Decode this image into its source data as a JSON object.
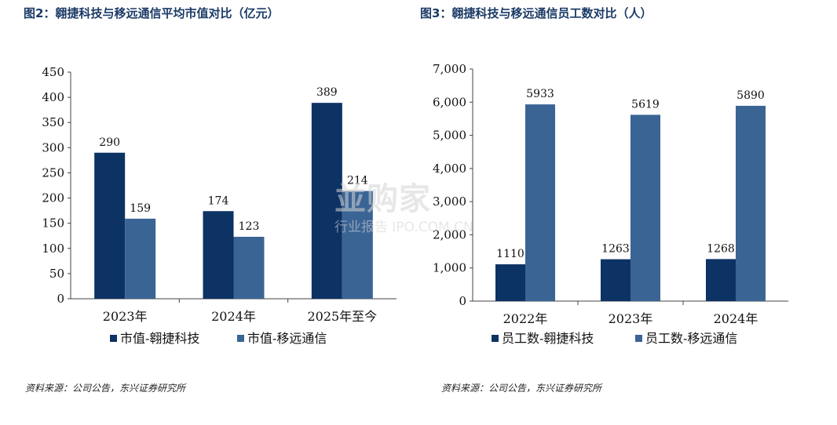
{
  "titles": {
    "left": "图2：翱捷科技与移远通信平均市值对比（亿元）",
    "right": "图3：翱捷科技与移远通信员工数对比（人）"
  },
  "sources": {
    "left": "资料来源：公司公告，东兴证券研究所",
    "right": "资料来源：公司公告，东兴证券研究所"
  },
  "watermark": {
    "brand": "並购家",
    "sub": "行业报告 IPO.COM.CN"
  },
  "colors": {
    "dark": "#0d3264",
    "mid": "#3a6494"
  },
  "chart_data": [
    {
      "type": "bar",
      "title": "图2：翱捷科技与移远通信平均市值对比（亿元）",
      "categories": [
        "2023年",
        "2024年",
        "2025年至今"
      ],
      "series": [
        {
          "name": "市值-翱捷科技",
          "values": [
            290,
            174,
            389
          ],
          "color": "#0d3264"
        },
        {
          "name": "市值-移远通信",
          "values": [
            159,
            123,
            214
          ],
          "color": "#3a6494"
        }
      ],
      "ylim": [
        0,
        450
      ],
      "yticks": [
        0,
        50,
        100,
        150,
        200,
        250,
        300,
        350,
        400,
        450
      ],
      "ytick_labels": [
        "0",
        "50",
        "100",
        "150",
        "200",
        "250",
        "300",
        "350",
        "400",
        "450"
      ],
      "legend_position": "bottom",
      "grid": false
    },
    {
      "type": "bar",
      "title": "图3：翱捷科技与移远通信员工数对比（人）",
      "categories": [
        "2022年",
        "2023年",
        "2024年"
      ],
      "series": [
        {
          "name": "员工数-翱捷科技",
          "values": [
            1110,
            1263,
            1268
          ],
          "color": "#0d3264"
        },
        {
          "name": "员工数-移远通信",
          "values": [
            5933,
            5619,
            5890
          ],
          "color": "#3a6494"
        }
      ],
      "ylim": [
        0,
        7000
      ],
      "yticks": [
        0,
        1000,
        2000,
        3000,
        4000,
        5000,
        6000,
        7000
      ],
      "ytick_labels": [
        "0",
        "1,000",
        "2,000",
        "3,000",
        "4,000",
        "5,000",
        "6,000",
        "7,000"
      ],
      "legend_position": "bottom",
      "grid": false
    }
  ]
}
